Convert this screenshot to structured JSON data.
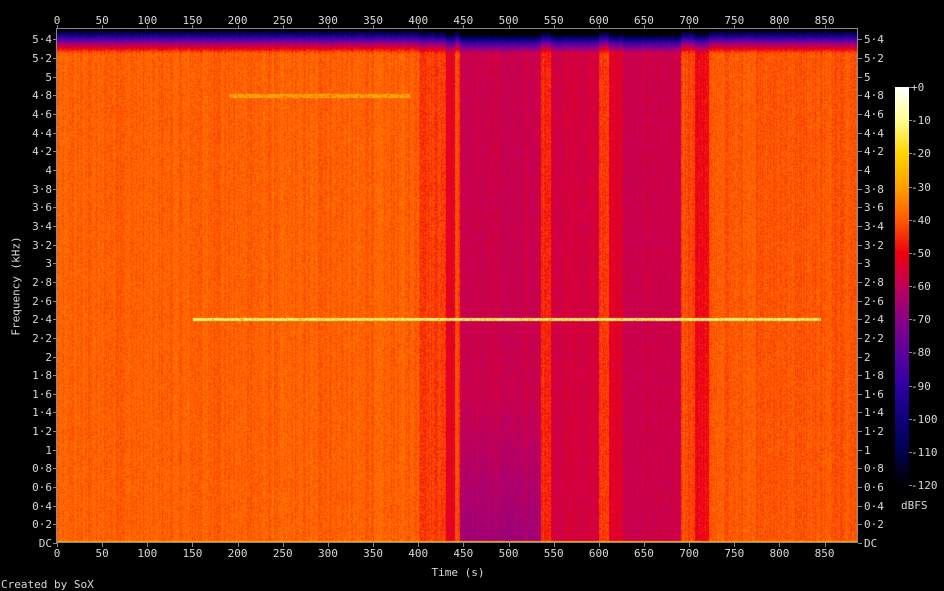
{
  "chart_data": {
    "type": "heatmap",
    "title": "",
    "xlabel": "Time (s)",
    "ylabel": "Frequency (kHz)",
    "colorbar_label": "dBFS",
    "xlim": [
      0,
      887
    ],
    "ylim": [
      0,
      5.5125
    ],
    "zlim": [
      -120,
      0
    ],
    "x_ticks": [
      "0",
      "50",
      "100",
      "150",
      "200",
      "250",
      "300",
      "350",
      "400",
      "450",
      "500",
      "550",
      "600",
      "650",
      "700",
      "750",
      "800",
      "850"
    ],
    "x_tick_values": [
      0,
      50,
      100,
      150,
      200,
      250,
      300,
      350,
      400,
      450,
      500,
      550,
      600,
      650,
      700,
      750,
      800,
      850
    ],
    "y_ticks": [
      "DC",
      "0·2",
      "0·4",
      "0·6",
      "0·8",
      "1",
      "1·2",
      "1·4",
      "1·6",
      "1·8",
      "2",
      "2·2",
      "2·4",
      "2·6",
      "2·8",
      "3",
      "3·2",
      "3·4",
      "3·6",
      "3·8",
      "4",
      "4·2",
      "4·4",
      "4·6",
      "4·8",
      "5",
      "5·2",
      "5·4"
    ],
    "y_tick_values": [
      0,
      0.2,
      0.4,
      0.6,
      0.8,
      1,
      1.2,
      1.4,
      1.6,
      1.8,
      2,
      2.2,
      2.4,
      2.6,
      2.8,
      3,
      3.2,
      3.4,
      3.6,
      3.8,
      4,
      4.2,
      4.4,
      4.6,
      4.8,
      5,
      5.2,
      5.4
    ],
    "colorbar_ticks": [
      "+0",
      "-10",
      "-20",
      "-30",
      "-40",
      "-50",
      "-60",
      "-70",
      "-80",
      "-90",
      "-100",
      "-110",
      "-120"
    ],
    "colormap": [
      {
        "db": 0,
        "color": "#ffffff"
      },
      {
        "db": -10,
        "color": "#ffff90"
      },
      {
        "db": -20,
        "color": "#ffd400"
      },
      {
        "db": -30,
        "color": "#ffa000"
      },
      {
        "db": -40,
        "color": "#ff5a00"
      },
      {
        "db": -50,
        "color": "#f00010"
      },
      {
        "db": -60,
        "color": "#c0005c"
      },
      {
        "db": -70,
        "color": "#8c0088"
      },
      {
        "db": -80,
        "color": "#5c00a0"
      },
      {
        "db": -90,
        "color": "#3000a0"
      },
      {
        "db": -100,
        "color": "#10007c"
      },
      {
        "db": -110,
        "color": "#00004c"
      },
      {
        "db": -120,
        "color": "#000000"
      }
    ],
    "time_segments_dbfs": [
      {
        "t": [
          0,
          400
        ],
        "level": -39
      },
      {
        "t": [
          400,
          430
        ],
        "level": -43
      },
      {
        "t": [
          430,
          440
        ],
        "level": -52
      },
      {
        "t": [
          440,
          446
        ],
        "level": -42
      },
      {
        "t": [
          446,
          535
        ],
        "level": -58,
        "low_freq_level": -66
      },
      {
        "t": [
          535,
          546
        ],
        "level": -45
      },
      {
        "t": [
          546,
          600
        ],
        "level": -56
      },
      {
        "t": [
          600,
          611
        ],
        "level": -44
      },
      {
        "t": [
          611,
          626
        ],
        "level": -53
      },
      {
        "t": [
          626,
          690
        ],
        "level": -58
      },
      {
        "t": [
          690,
          706
        ],
        "level": -42
      },
      {
        "t": [
          706,
          722
        ],
        "level": -50
      },
      {
        "t": [
          722,
          887
        ],
        "level": -40
      }
    ],
    "tones": [
      {
        "freq_khz": 2.4,
        "t": [
          150,
          845
        ],
        "level": -12
      },
      {
        "freq_khz": 4.8,
        "t": [
          190,
          390
        ],
        "level": -28
      }
    ],
    "high_freq_rolloff_khz": [
      5.25,
      5.5125
    ]
  },
  "footer": {
    "credit": "Created by SoX"
  }
}
